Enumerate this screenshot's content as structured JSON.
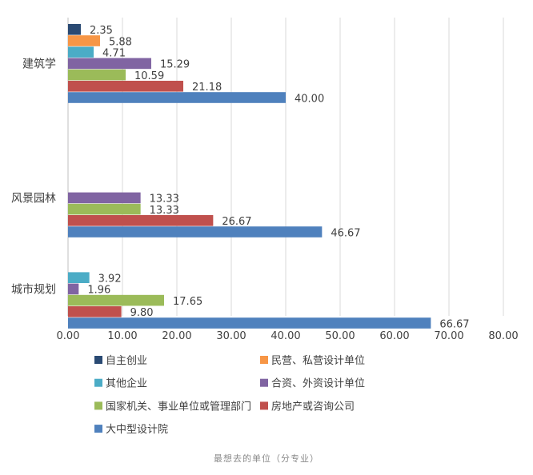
{
  "chart_data": {
    "type": "bar",
    "orientation": "horizontal",
    "categories": [
      "建筑学",
      "风景园林",
      "城市规划"
    ],
    "series": [
      {
        "name": "自主创业",
        "color": "#2a4a73",
        "values": [
          2.35,
          null,
          null
        ]
      },
      {
        "name": "民营、私营设计单位",
        "color": "#f79646",
        "values": [
          5.88,
          null,
          null
        ]
      },
      {
        "name": "其他企业",
        "color": "#4bacc6",
        "values": [
          4.71,
          null,
          3.92
        ]
      },
      {
        "name": "合资、外资设计单位",
        "color": "#8064a2",
        "values": [
          15.29,
          13.33,
          1.96
        ]
      },
      {
        "name": "国家机关、事业单位或管理部门",
        "color": "#9bbb59",
        "values": [
          10.59,
          13.33,
          17.65
        ]
      },
      {
        "name": "房地产或咨询公司",
        "color": "#c0504d",
        "values": [
          21.18,
          26.67,
          9.8
        ]
      },
      {
        "name": "大中型设计院",
        "color": "#4f81bd",
        "values": [
          40.0,
          46.67,
          66.67
        ]
      }
    ],
    "xlim": [
      0,
      80
    ],
    "xticks": [
      "0.00",
      "10.00",
      "20.00",
      "30.00",
      "40.00",
      "50.00",
      "60.00",
      "70.00",
      "80.00"
    ],
    "grid": "vertical",
    "legend_position": "bottom"
  },
  "caption": "最想去的单位（分专业）"
}
